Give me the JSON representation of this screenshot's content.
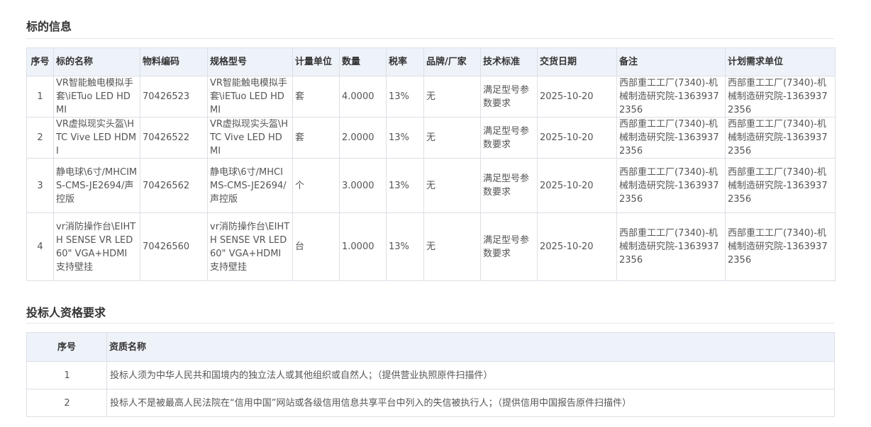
{
  "section1": {
    "title": "标的信息",
    "columns": [
      "序号",
      "标的名称",
      "物料编码",
      "规格型号",
      "计量单位",
      "数量",
      "税率",
      "品牌/厂家",
      "技术标准",
      "交货日期",
      "备注",
      "计划需求单位"
    ],
    "rows": [
      [
        "1",
        "VR智能触电模拟手套\\iETuo LED HDMI",
        "70426523",
        "VR智能触电模拟手套\\iETuo LED HDMI",
        "套",
        "4.0000",
        "13%",
        "无",
        "满足型号参数要求",
        "2025-10-20",
        "西部重工工厂(7340)-机械制造研究院-13639372356",
        "西部重工工厂(7340)-机械制造研究院-13639372356"
      ],
      [
        "2",
        "VR虚拟现实头盔\\HTC Vive LED HDMI",
        "70426522",
        "VR虚拟现实头盔\\HTC Vive LED HDMI",
        "套",
        "2.0000",
        "13%",
        "无",
        "满足型号参数要求",
        "2025-10-20",
        "西部重工工厂(7340)-机械制造研究院-13639372356",
        "西部重工工厂(7340)-机械制造研究院-13639372356"
      ],
      [
        "3",
        "静电球\\6寸/MHCIMS-CMS-JE2694/声控版",
        "70426562",
        "静电球\\6寸/MHCIMS-CMS-JE2694/声控版",
        "个",
        "3.0000",
        "13%",
        "无",
        "满足型号参数要求",
        "2025-10-20",
        "西部重工工厂(7340)-机械制造研究院-13639372356",
        "西部重工工厂(7340)-机械制造研究院-13639372356"
      ],
      [
        "4",
        "vr消防操作台\\EIHTH SENSE VR LED 60\" VGA+HDMI 支持壁挂",
        "70426560",
        "vr消防操作台\\EIHTH SENSE VR LED 60\" VGA+HDMI 支持壁挂",
        "台",
        "1.0000",
        "13%",
        "无",
        "满足型号参数要求",
        "2025-10-20",
        "西部重工工厂(7340)-机械制造研究院-13639372356",
        "西部重工工厂(7340)-机械制造研究院-13639372356"
      ]
    ]
  },
  "section2": {
    "title": "投标人资格要求",
    "columns": [
      "序号",
      "资质名称"
    ],
    "rows": [
      [
        "1",
        "投标人须为中华人民共和国境内的独立法人或其他组织或自然人；（提供营业执照原件扫描件）"
      ],
      [
        "2",
        "投标人不是被最高人民法院在“信用中国”网站或各级信用信息共享平台中列入的失信被执行人；（提供信用中国报告原件扫描件）"
      ]
    ]
  }
}
